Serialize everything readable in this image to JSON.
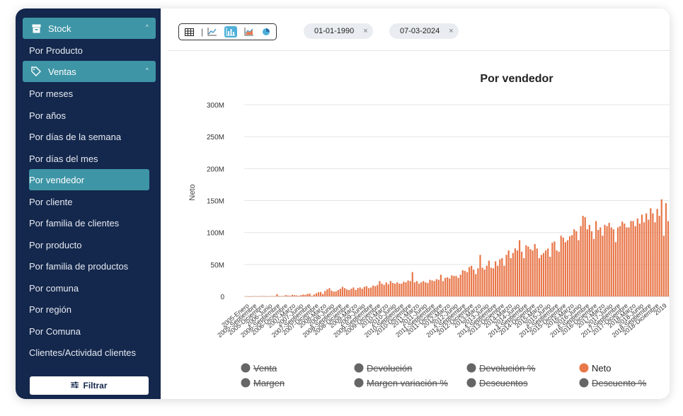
{
  "sidebar": {
    "stock_label": "Stock",
    "stock_items": [
      "Por Producto"
    ],
    "ventas_label": "Ventas",
    "ventas_items": [
      "Por meses",
      "Por años",
      "Por días de la semana",
      "Por días del mes",
      "Por vendedor",
      "Por cliente",
      "Por familia de clientes",
      "Por producto",
      "Por familia de productos",
      "Por comuna",
      "Por región",
      "Por Comuna",
      "Clientes/Actividad clientes"
    ],
    "active_item": "Por vendedor",
    "filter_label": "Filtrar",
    "accent_color": "#3e95a6",
    "background_color": "#14274c"
  },
  "toolbar": {
    "icons": [
      "table-icon",
      "line-chart-icon",
      "bar-chart-icon",
      "area-chart-icon",
      "pie-chart-icon"
    ],
    "active": "bar-chart-icon"
  },
  "filters": {
    "date_from": "01-01-1990",
    "date_to": "07-03-2024",
    "remove_glyph": "×"
  },
  "chart_data": {
    "type": "bar",
    "title": "Por vendedor",
    "ylabel": "Neto",
    "xlabel": "",
    "ylim": [
      0,
      300000000
    ],
    "yticks": [
      "0",
      "50M",
      "100M",
      "150M",
      "200M",
      "250M",
      "300M"
    ],
    "grid": true,
    "legend_placement": "bottom",
    "bar_color": "#e8774a",
    "tick_labels": [
      "2005-Enero",
      "2005-Septiembre",
      "2005-Diciembre",
      "2006-Junio",
      "2006-Septiembre",
      "2006-Diciembre",
      "2007-Marzo",
      "2007-Junio",
      "2007-Septiembre",
      "2007-Diciembre",
      "2008-Marzo",
      "2008-Junio",
      "2008-Septiembre",
      "2008-Diciembre",
      "2009-Marzo",
      "2009-Junio",
      "2009-Septiembre",
      "2009-Diciembre",
      "2010-Marzo",
      "2010-Junio",
      "2010-Septiembre",
      "2010-Diciembre",
      "2011-Marzo",
      "2011-Junio",
      "2011-Septiembre",
      "2011-Diciembre",
      "2012-Marzo",
      "2012-Junio",
      "2012-Septiembre",
      "2012-Diciembre",
      "2013-Marzo",
      "2013-Junio",
      "2013-Septiembre",
      "2013-Diciembre",
      "2014-Marzo",
      "2014-Junio",
      "2014-Septiembre",
      "2014-Diciembre",
      "2015-Marzo",
      "2015-Junio",
      "2015-Septiembre",
      "2015-Diciembre",
      "2016-Marzo",
      "2016-Junio",
      "2016-Septiembre",
      "2016-Diciembre",
      "2017-Marzo",
      "2017-Junio",
      "2017-Septiembre",
      "2017-Diciembre",
      "2018-Marzo",
      "2018-Junio",
      "2018-Septiembre",
      "2018-Diciembre",
      "2019"
    ],
    "values_millions": [
      0.2,
      0.1,
      0,
      0.3,
      0.5,
      0.2,
      0.4,
      0.3,
      0.8,
      0.1,
      0.2,
      0.5,
      0.6,
      0.3,
      3.5,
      0.8,
      0.5,
      0.6,
      2,
      1.5,
      1,
      2.5,
      2,
      1.5,
      1,
      2,
      3,
      2.5,
      4,
      4.5,
      1,
      3,
      5,
      6.5,
      7,
      4,
      8.5,
      11,
      13,
      9,
      7.5,
      8,
      10,
      12,
      15,
      13,
      11,
      10,
      12,
      14,
      10,
      13,
      14,
      12,
      15,
      16,
      13,
      14,
      17,
      16,
      18,
      24,
      20,
      18,
      22,
      19,
      24,
      21,
      20,
      22,
      20,
      20,
      23,
      22,
      25,
      24,
      38,
      22,
      24,
      20,
      22,
      24,
      22,
      21,
      26,
      25,
      24,
      27,
      26,
      34,
      24,
      29,
      30,
      28,
      33,
      32,
      32,
      29,
      34,
      41,
      40,
      38,
      46,
      48,
      42,
      35,
      44,
      65,
      45,
      42,
      48,
      56,
      45,
      44,
      55,
      48,
      58,
      60,
      48,
      65,
      72,
      60,
      68,
      75,
      72,
      88,
      70,
      60,
      80,
      78,
      74,
      72,
      82,
      75,
      60,
      65,
      68,
      72,
      75,
      62,
      84,
      86,
      72,
      70,
      95,
      92,
      85,
      88,
      94,
      96,
      105,
      102,
      88,
      110,
      126,
      124,
      105,
      112,
      102,
      90,
      118,
      104,
      108,
      95,
      112,
      110,
      115,
      108,
      105,
      85,
      108,
      110,
      117,
      114,
      108,
      108,
      118,
      118,
      110,
      122,
      114,
      128,
      116,
      130,
      120,
      138,
      130,
      116,
      137,
      126,
      152,
      95,
      146,
      118
    ]
  },
  "legend": [
    {
      "name": "Venta",
      "active": false
    },
    {
      "name": "Devolución",
      "active": false
    },
    {
      "name": "Devolución %",
      "active": false
    },
    {
      "name": "Neto",
      "active": true
    },
    {
      "name": "Margen",
      "active": false
    },
    {
      "name": "Margen variación %",
      "active": false
    },
    {
      "name": "Descuentos",
      "active": false
    },
    {
      "name": "Descuento %",
      "active": false
    }
  ],
  "legend_colors": {
    "active": "#e8774a",
    "inactive": "#666666"
  }
}
